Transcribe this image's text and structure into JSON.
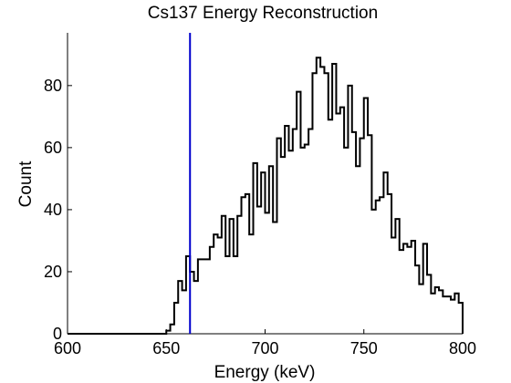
{
  "chart_data": {
    "type": "histogram",
    "title": "Cs137 Energy Reconstruction",
    "xlabel": "Energy (keV)",
    "ylabel": "Count",
    "xlim": [
      600,
      800
    ],
    "ylim": [
      0,
      97
    ],
    "xticks": [
      600,
      650,
      700,
      750,
      800
    ],
    "yticks": [
      0,
      20,
      40,
      60,
      80
    ],
    "grid": false,
    "legend": "none",
    "bin_width": 2,
    "series": [
      {
        "color": "#000000",
        "x": [
          600,
          602,
          604,
          606,
          608,
          610,
          612,
          614,
          616,
          618,
          620,
          622,
          624,
          626,
          628,
          630,
          632,
          634,
          636,
          638,
          640,
          642,
          644,
          646,
          648,
          650,
          652,
          654,
          656,
          658,
          660,
          662,
          664,
          666,
          668,
          670,
          672,
          674,
          676,
          678,
          680,
          682,
          684,
          686,
          688,
          690,
          692,
          694,
          696,
          698,
          700,
          702,
          704,
          706,
          708,
          710,
          712,
          714,
          716,
          718,
          720,
          722,
          724,
          726,
          728,
          730,
          732,
          734,
          736,
          738,
          740,
          742,
          744,
          746,
          748,
          750,
          752,
          754,
          756,
          758,
          760,
          762,
          764,
          766,
          768,
          770,
          772,
          774,
          776,
          778,
          780,
          782,
          784,
          786,
          788,
          790,
          792,
          794,
          796,
          798
        ],
        "values": [
          0,
          0,
          0,
          0,
          0,
          0,
          0,
          0,
          0,
          0,
          0,
          0,
          0,
          0,
          0,
          0,
          0,
          0,
          0,
          0,
          0,
          0,
          0,
          0,
          0,
          1,
          3,
          10,
          17,
          14,
          25,
          20,
          17,
          24,
          24,
          24,
          28,
          32,
          31,
          38,
          25,
          37,
          25,
          38,
          44,
          45,
          32,
          55,
          41,
          52,
          39,
          54,
          36,
          63,
          57,
          67,
          59,
          66,
          78,
          60,
          61,
          66,
          84,
          89,
          86,
          84,
          69,
          87,
          71,
          73,
          60,
          80,
          65,
          54,
          63,
          76,
          64,
          40,
          43,
          44,
          52,
          45,
          31,
          37,
          27,
          29,
          28,
          30,
          22,
          16,
          29,
          19,
          13,
          15,
          14,
          12,
          12,
          11,
          13,
          10
        ]
      }
    ],
    "annotations": [
      {
        "type": "vertical-line",
        "x": 662,
        "color": "#0000cc"
      }
    ]
  }
}
